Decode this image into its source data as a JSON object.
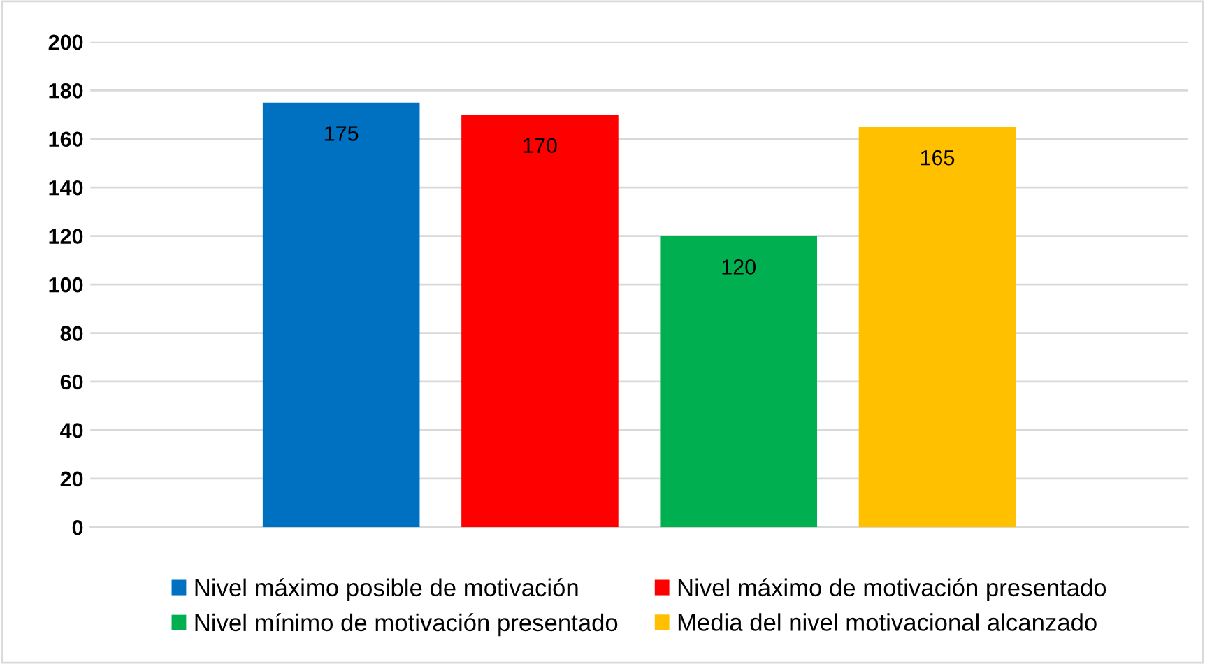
{
  "chart_data": {
    "type": "bar",
    "categories": [
      null
    ],
    "series": [
      {
        "name": "Nivel máximo posible de motivación",
        "color": "#0070c0",
        "values": [
          175
        ]
      },
      {
        "name": "Nivel máximo de motivación presentado",
        "color": "#ff0000",
        "values": [
          170
        ]
      },
      {
        "name": "Nivel mínimo de motivación presentado",
        "color": "#00b050",
        "values": [
          120
        ]
      },
      {
        "name": "Media del nivel motivacional alcanzado",
        "color": "#ffc000",
        "values": [
          165
        ]
      }
    ],
    "ylim": [
      0,
      200
    ],
    "yticks": [
      0,
      20,
      40,
      60,
      80,
      100,
      120,
      140,
      160,
      180,
      200
    ],
    "grid": "y",
    "legend": "bottom",
    "data_labels": true
  }
}
